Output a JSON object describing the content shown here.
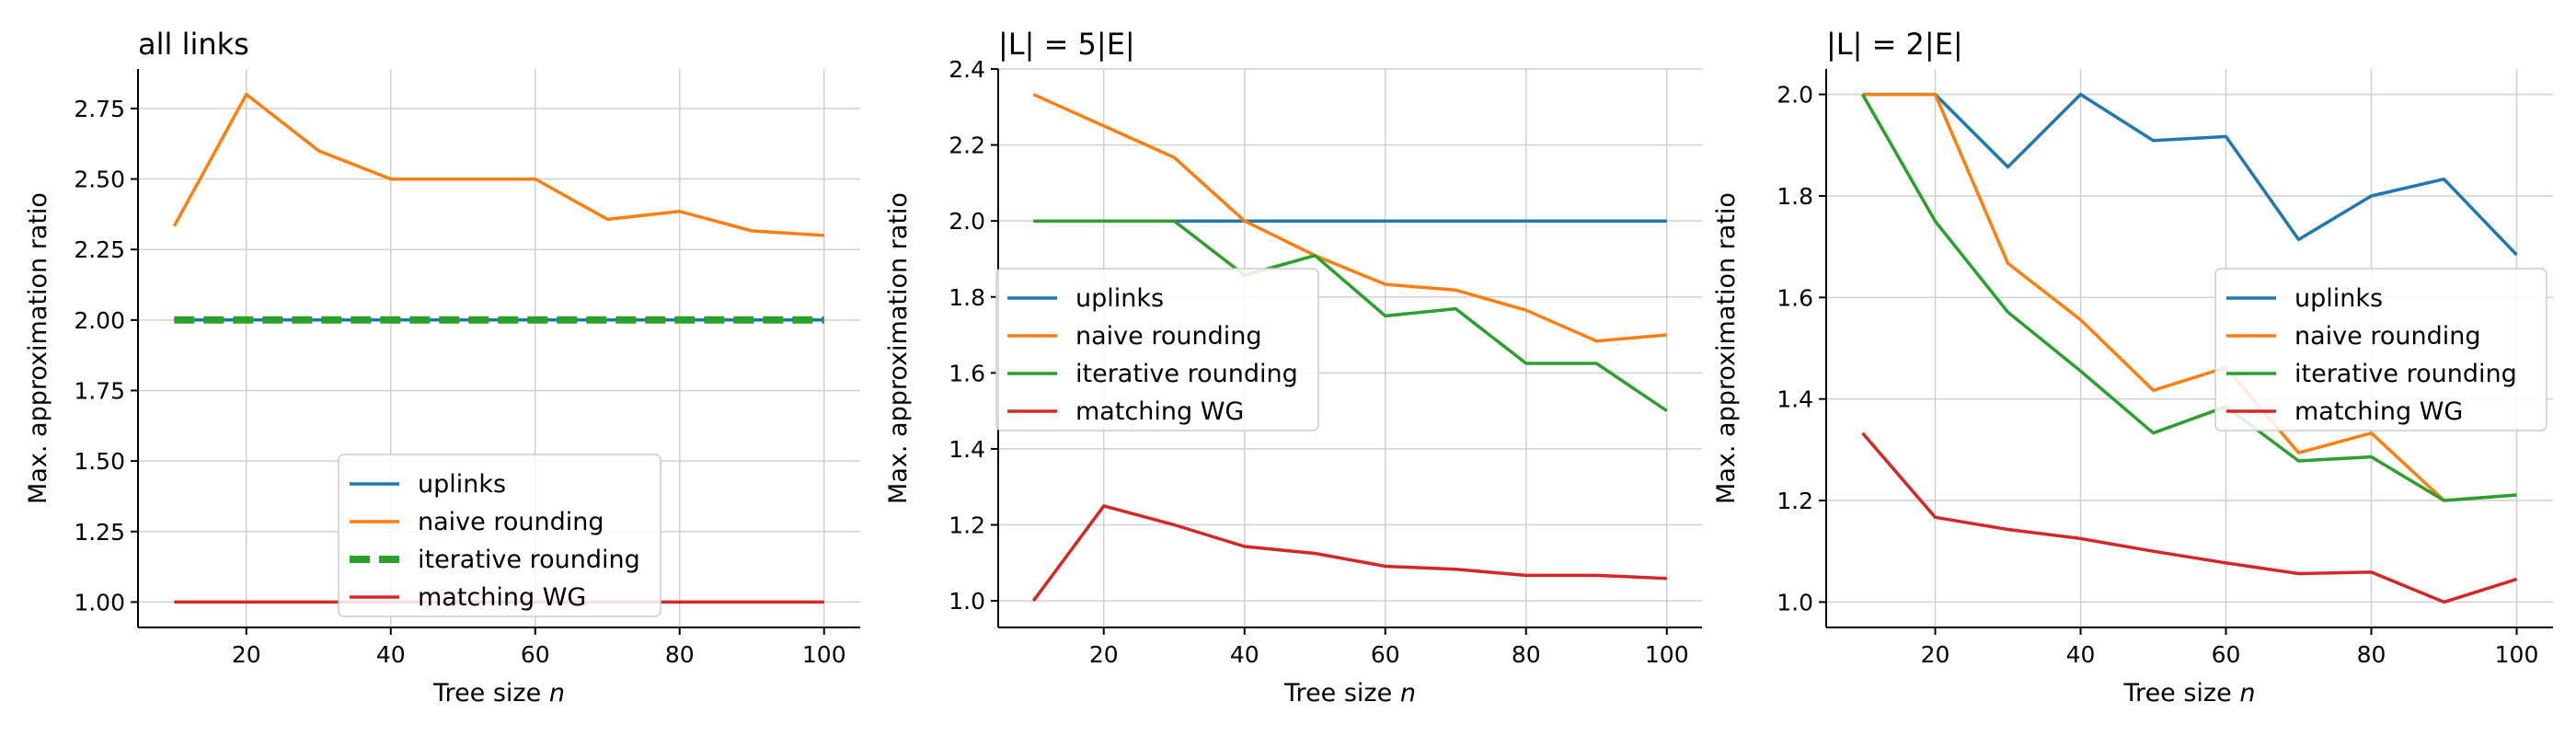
{
  "chart_data": [
    {
      "type": "line",
      "title": "all links",
      "xlabel": "Tree size",
      "xlabel_var": "n",
      "ylabel": "Max. approximation ratio",
      "xlim": [
        5,
        105
      ],
      "ylim": [
        0.91,
        2.89
      ],
      "xticks": [
        20,
        40,
        60,
        80,
        100
      ],
      "yticks": [
        1.0,
        1.25,
        1.5,
        1.75,
        2.0,
        2.25,
        2.5,
        2.75
      ],
      "ytick_labels": [
        "1.00",
        "1.25",
        "1.50",
        "1.75",
        "2.00",
        "2.25",
        "2.50",
        "2.75"
      ],
      "grid": true,
      "legend_position": "lower-center",
      "x": [
        10,
        20,
        30,
        40,
        50,
        60,
        70,
        80,
        90,
        100
      ],
      "series": [
        {
          "name": "uplinks",
          "color": "#1f77b4",
          "style": "solid",
          "values": [
            2.0,
            2.0,
            2.0,
            2.0,
            2.0,
            2.0,
            2.0,
            2.0,
            2.0,
            2.0
          ]
        },
        {
          "name": "naive rounding",
          "color": "#ff7f0e",
          "style": "solid",
          "values": [
            2.333,
            2.8,
            2.6,
            2.5,
            2.5,
            2.5,
            2.357,
            2.385,
            2.316,
            2.3
          ]
        },
        {
          "name": "iterative rounding",
          "color": "#2ca02c",
          "style": "dashed",
          "values": [
            2.0,
            2.0,
            2.0,
            2.0,
            2.0,
            2.0,
            2.0,
            2.0,
            2.0,
            2.0
          ]
        },
        {
          "name": "matching WG",
          "color": "#d62728",
          "style": "solid",
          "values": [
            1.0,
            1.0,
            1.0,
            1.0,
            1.0,
            1.0,
            1.0,
            1.0,
            1.0,
            1.0
          ]
        }
      ]
    },
    {
      "type": "line",
      "title": "|L| = 5|E|",
      "xlabel": "Tree size",
      "xlabel_var": "n",
      "ylabel": "Max. approximation ratio",
      "xlim": [
        5,
        105
      ],
      "ylim": [
        0.93,
        2.4
      ],
      "xticks": [
        20,
        40,
        60,
        80,
        100
      ],
      "yticks": [
        1.0,
        1.2,
        1.4,
        1.6,
        1.8,
        2.0,
        2.2,
        2.4
      ],
      "ytick_labels": [
        "1.0",
        "1.2",
        "1.4",
        "1.6",
        "1.8",
        "2.0",
        "2.2",
        "2.4"
      ],
      "grid": true,
      "legend_position": "center-left",
      "x": [
        10,
        20,
        30,
        40,
        50,
        60,
        70,
        80,
        90,
        100
      ],
      "series": [
        {
          "name": "uplinks",
          "color": "#1f77b4",
          "style": "solid",
          "values": [
            2.0,
            2.0,
            2.0,
            2.0,
            2.0,
            2.0,
            2.0,
            2.0,
            2.0,
            2.0
          ]
        },
        {
          "name": "naive rounding",
          "color": "#ff7f0e",
          "style": "solid",
          "values": [
            2.333,
            2.25,
            2.167,
            2.0,
            1.909,
            1.833,
            1.818,
            1.765,
            1.684,
            1.7
          ]
        },
        {
          "name": "iterative rounding",
          "color": "#2ca02c",
          "style": "solid",
          "values": [
            2.0,
            2.0,
            2.0,
            1.857,
            1.909,
            1.75,
            1.769,
            1.625,
            1.625,
            1.5
          ]
        },
        {
          "name": "matching WG",
          "color": "#d62728",
          "style": "solid",
          "values": [
            1.0,
            1.25,
            1.2,
            1.143,
            1.125,
            1.091,
            1.083,
            1.067,
            1.067,
            1.059
          ]
        }
      ]
    },
    {
      "type": "line",
      "title": "|L| = 2|E|",
      "xlabel": "Tree size",
      "xlabel_var": "n",
      "ylabel": "Max. approximation ratio",
      "xlim": [
        5,
        105
      ],
      "ylim": [
        0.95,
        2.05
      ],
      "xticks": [
        20,
        40,
        60,
        80,
        100
      ],
      "yticks": [
        1.0,
        1.2,
        1.4,
        1.6,
        1.8,
        2.0
      ],
      "ytick_labels": [
        "1.0",
        "1.2",
        "1.4",
        "1.6",
        "1.8",
        "2.0"
      ],
      "grid": true,
      "legend_position": "center-right",
      "x": [
        10,
        20,
        30,
        40,
        50,
        60,
        70,
        80,
        90,
        100
      ],
      "series": [
        {
          "name": "uplinks",
          "color": "#1f77b4",
          "style": "solid",
          "values": [
            2.0,
            2.0,
            1.857,
            2.0,
            1.909,
            1.917,
            1.714,
            1.8,
            1.833,
            1.684
          ]
        },
        {
          "name": "naive rounding",
          "color": "#ff7f0e",
          "style": "solid",
          "values": [
            2.0,
            2.0,
            1.667,
            1.556,
            1.417,
            1.462,
            1.294,
            1.333,
            1.2,
            1.211
          ]
        },
        {
          "name": "iterative rounding",
          "color": "#2ca02c",
          "style": "solid",
          "values": [
            2.0,
            1.75,
            1.571,
            1.455,
            1.333,
            1.385,
            1.278,
            1.286,
            1.2,
            1.211
          ]
        },
        {
          "name": "matching WG",
          "color": "#d62728",
          "style": "solid",
          "values": [
            1.333,
            1.167,
            1.143,
            1.125,
            1.1,
            1.077,
            1.056,
            1.059,
            1.0,
            1.045
          ]
        }
      ]
    }
  ]
}
